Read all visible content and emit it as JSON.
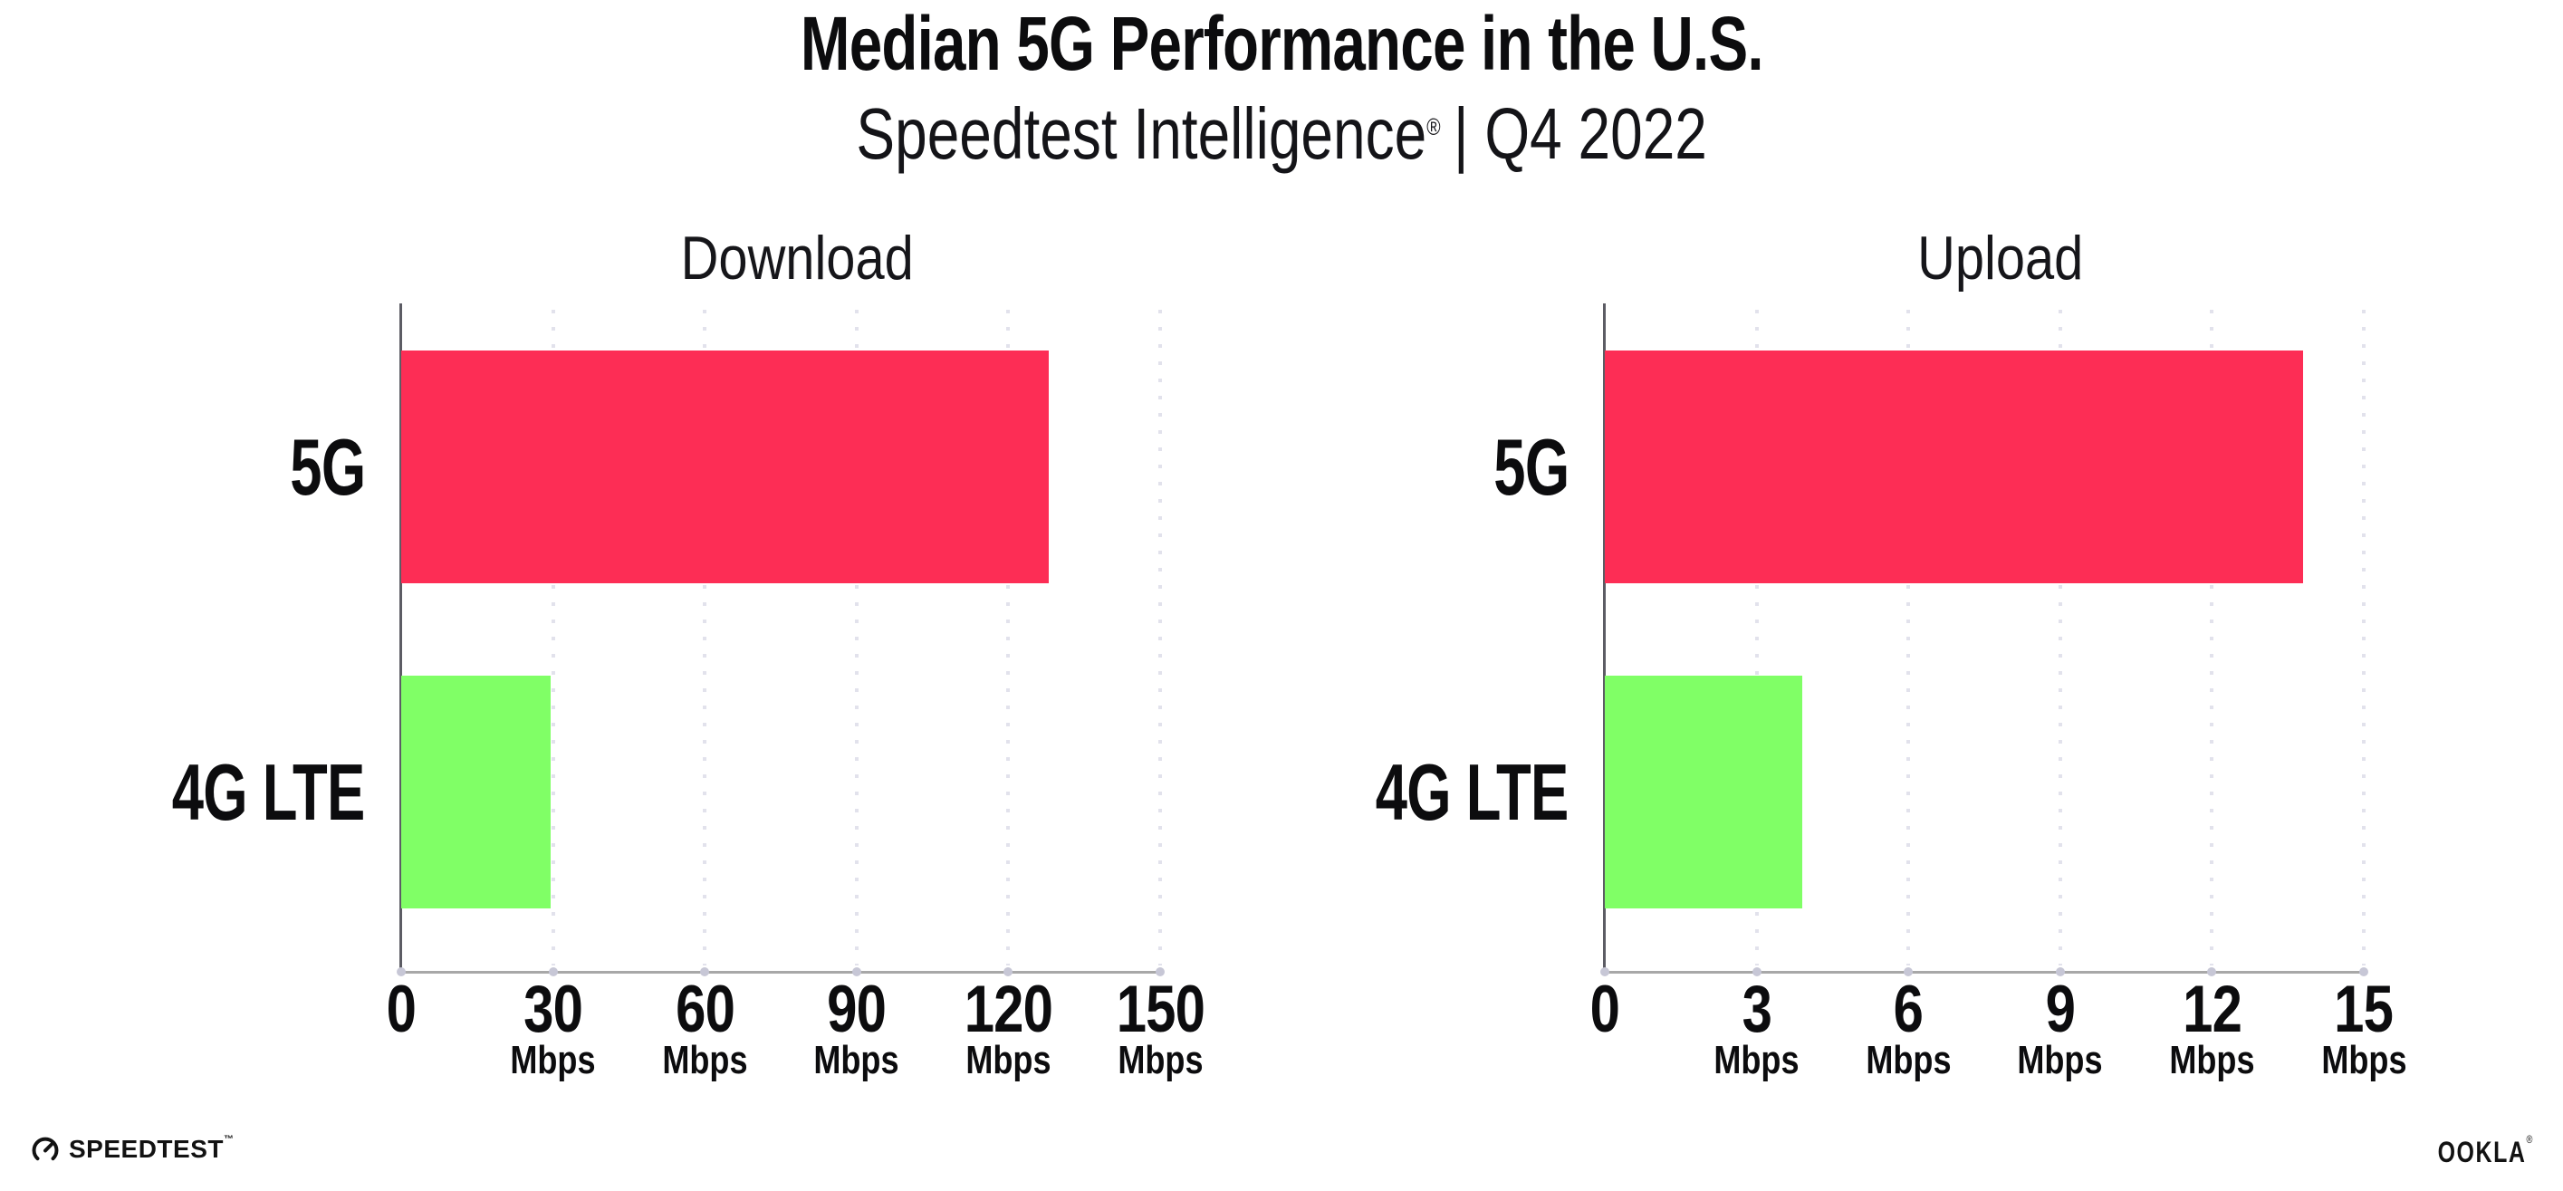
{
  "header": {
    "title": "Median 5G Performance in the U.S.",
    "subtitle_brand": "Speedtest Intelligence",
    "subtitle_reg": "®",
    "subtitle_period": "| Q4 2022"
  },
  "chart_data": [
    {
      "type": "bar",
      "orientation": "horizontal",
      "title": "Download",
      "categories": [
        "5G",
        "4G LTE"
      ],
      "values": [
        128,
        29.5
      ],
      "unit": "Mbps",
      "xlim": [
        0,
        150
      ],
      "xticks": [
        0,
        30,
        60,
        90,
        120,
        150
      ],
      "bar_colors": [
        "#fd2d55",
        "#80ff66"
      ],
      "grid": "dotted vertical gridline at each tick",
      "legend": "none"
    },
    {
      "type": "bar",
      "orientation": "horizontal",
      "title": "Upload",
      "categories": [
        "5G",
        "4G LTE"
      ],
      "values": [
        13.8,
        3.9
      ],
      "unit": "Mbps",
      "xlim": [
        0,
        15
      ],
      "xticks": [
        0,
        3,
        6,
        9,
        12,
        15
      ],
      "bar_colors": [
        "#fd2d55",
        "#80ff66"
      ],
      "grid": "dotted vertical gridline at each tick",
      "legend": "none"
    }
  ],
  "footer": {
    "speedtest_label": "SPEEDTEST",
    "speedtest_tm": "™",
    "ookla_label": "OOKLA",
    "ookla_reg": "®"
  },
  "colors": {
    "bar_5g": "#fd2d55",
    "bar_4g_lte": "#80ff66",
    "x_axis_line": "#a8a8a8",
    "y_axis_line": "#5c5c64",
    "gridline": "#e2e2ec",
    "tick_dot": "#c7c7d6",
    "text": "#0c0c0e",
    "background": "#ffffff"
  }
}
